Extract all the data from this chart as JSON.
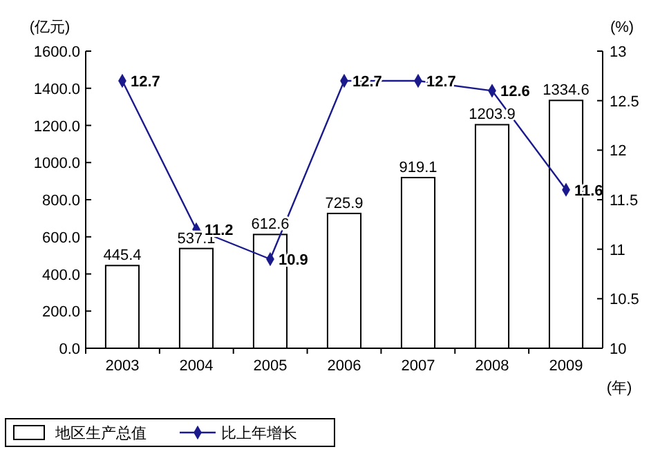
{
  "chart_data": {
    "type": "bar",
    "categories": [
      "2003",
      "2004",
      "2005",
      "2006",
      "2007",
      "2008",
      "2009"
    ],
    "series": [
      {
        "name": "地区生产总值",
        "color": "#ffffff",
        "values": [
          445.4,
          537.1,
          612.6,
          725.9,
          919.1,
          1203.9,
          1334.6
        ]
      },
      {
        "name": "比上年增长",
        "type": "line",
        "axis": "y2",
        "color": "#1a1a8c",
        "marker": "diamond",
        "values": [
          12.7,
          11.2,
          10.9,
          12.7,
          12.7,
          12.6,
          11.6
        ]
      }
    ],
    "ylabel": "(亿元)",
    "y2label": "(%)",
    "xlabel": "(年)",
    "ylim": [
      0,
      1600
    ],
    "yticks": [
      {
        "value": 0,
        "label": "0.0"
      },
      {
        "value": 200,
        "label": "200.0"
      },
      {
        "value": 400,
        "label": "400.0"
      },
      {
        "value": 600,
        "label": "600.0"
      },
      {
        "value": 800,
        "label": "800.0"
      },
      {
        "value": 1000,
        "label": "1000.0"
      },
      {
        "value": 1200,
        "label": "1200.0"
      },
      {
        "value": 1400,
        "label": "1400.0"
      },
      {
        "value": 1600,
        "label": "1600.0"
      }
    ],
    "y2lim": [
      10,
      13
    ],
    "y2ticks": [
      10,
      10.5,
      11,
      11.5,
      12,
      12.5,
      13
    ],
    "data_labels": true,
    "legend": "bottom",
    "grid": false
  }
}
